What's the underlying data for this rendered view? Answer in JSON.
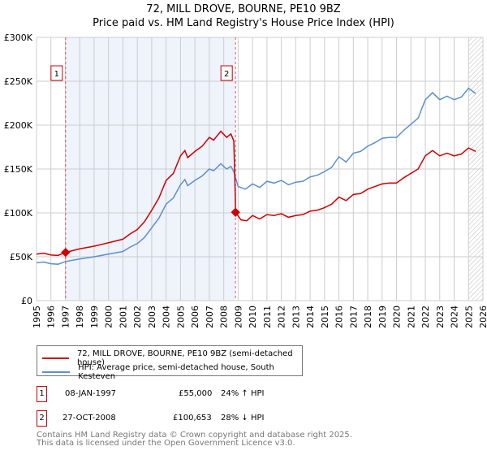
{
  "title": "72, MILL DROVE, BOURNE, PE10 9BZ",
  "subtitle": "Price paid vs. HM Land Registry's House Price Index (HPI)",
  "chart_data": {
    "type": "line",
    "xlim": [
      1995,
      2026
    ],
    "ylim": [
      0,
      300000
    ],
    "yticks": [
      0,
      50000,
      100000,
      150000,
      200000,
      250000,
      300000
    ],
    "ytick_labels": [
      "£0",
      "£50K",
      "£100K",
      "£150K",
      "£200K",
      "£250K",
      "£300K"
    ],
    "xticks": [
      1995,
      1996,
      1997,
      1998,
      1999,
      2000,
      2001,
      2002,
      2003,
      2004,
      2005,
      2006,
      2007,
      2008,
      2009,
      2010,
      2011,
      2012,
      2013,
      2014,
      2015,
      2016,
      2017,
      2018,
      2019,
      2020,
      2021,
      2022,
      2023,
      2024,
      2025,
      2026
    ],
    "series": [
      {
        "name": "72, MILL DROVE, BOURNE, PE10 9BZ (semi-detached house)",
        "color": "#cc0000",
        "points": [
          [
            1995,
            53000
          ],
          [
            1995.5,
            54000
          ],
          [
            1996,
            52000
          ],
          [
            1996.5,
            51500
          ],
          [
            1997.02,
            55000
          ],
          [
            1998,
            59000
          ],
          [
            1999,
            62000
          ],
          [
            2000,
            66000
          ],
          [
            2001,
            70000
          ],
          [
            2001.5,
            76000
          ],
          [
            2002,
            81000
          ],
          [
            2002.5,
            90000
          ],
          [
            2003,
            103000
          ],
          [
            2003.5,
            117000
          ],
          [
            2004,
            137000
          ],
          [
            2004.5,
            145000
          ],
          [
            2005,
            165000
          ],
          [
            2005.3,
            171000
          ],
          [
            2005.5,
            163000
          ],
          [
            2006,
            170000
          ],
          [
            2006.5,
            176000
          ],
          [
            2007,
            186000
          ],
          [
            2007.3,
            183000
          ],
          [
            2007.8,
            193000
          ],
          [
            2008.2,
            186000
          ],
          [
            2008.5,
            190000
          ],
          [
            2008.7,
            182000
          ],
          [
            2008.8,
            120000
          ],
          [
            2008.82,
            100653
          ],
          [
            2009.2,
            92000
          ],
          [
            2009.6,
            91000
          ],
          [
            2010,
            97000
          ],
          [
            2010.5,
            93000
          ],
          [
            2011,
            98000
          ],
          [
            2011.5,
            97000
          ],
          [
            2012,
            99000
          ],
          [
            2012.5,
            95000
          ],
          [
            2013,
            97000
          ],
          [
            2013.5,
            98000
          ],
          [
            2014,
            102000
          ],
          [
            2014.5,
            103000
          ],
          [
            2015,
            106000
          ],
          [
            2015.5,
            110000
          ],
          [
            2016,
            118000
          ],
          [
            2016.5,
            114000
          ],
          [
            2017,
            121000
          ],
          [
            2017.5,
            122000
          ],
          [
            2018,
            127000
          ],
          [
            2018.5,
            130000
          ],
          [
            2019,
            133000
          ],
          [
            2019.5,
            134000
          ],
          [
            2020,
            134000
          ],
          [
            2020.5,
            140000
          ],
          [
            2021,
            145000
          ],
          [
            2021.5,
            150000
          ],
          [
            2022,
            165000
          ],
          [
            2022.5,
            171000
          ],
          [
            2023,
            165000
          ],
          [
            2023.5,
            168000
          ],
          [
            2024,
            165000
          ],
          [
            2024.5,
            167000
          ],
          [
            2025,
            174000
          ],
          [
            2025.5,
            170000
          ]
        ]
      },
      {
        "name": "HPI: Average price, semi-detached house, South Kesteven",
        "color": "#5b8fd0",
        "points": [
          [
            1995,
            43000
          ],
          [
            1995.5,
            44000
          ],
          [
            1996,
            42000
          ],
          [
            1996.5,
            41500
          ],
          [
            1997,
            44500
          ],
          [
            1998,
            47500
          ],
          [
            1999,
            50000
          ],
          [
            2000,
            53000
          ],
          [
            2001,
            56000
          ],
          [
            2001.5,
            61000
          ],
          [
            2002,
            65000
          ],
          [
            2002.5,
            72000
          ],
          [
            2003,
            83000
          ],
          [
            2003.5,
            94000
          ],
          [
            2004,
            110000
          ],
          [
            2004.5,
            117000
          ],
          [
            2005,
            132000
          ],
          [
            2005.3,
            138000
          ],
          [
            2005.5,
            131000
          ],
          [
            2006,
            137000
          ],
          [
            2006.5,
            142000
          ],
          [
            2007,
            150000
          ],
          [
            2007.3,
            148000
          ],
          [
            2007.8,
            156000
          ],
          [
            2008.2,
            150000
          ],
          [
            2008.5,
            153000
          ],
          [
            2008.7,
            147000
          ],
          [
            2009,
            130000
          ],
          [
            2009.5,
            127000
          ],
          [
            2010,
            133000
          ],
          [
            2010.5,
            129000
          ],
          [
            2011,
            136000
          ],
          [
            2011.5,
            134000
          ],
          [
            2012,
            137000
          ],
          [
            2012.5,
            132000
          ],
          [
            2013,
            135000
          ],
          [
            2013.5,
            136000
          ],
          [
            2014,
            141000
          ],
          [
            2014.5,
            143000
          ],
          [
            2015,
            147000
          ],
          [
            2015.5,
            152000
          ],
          [
            2016,
            164000
          ],
          [
            2016.5,
            158000
          ],
          [
            2017,
            168000
          ],
          [
            2017.5,
            170000
          ],
          [
            2018,
            176000
          ],
          [
            2018.5,
            180000
          ],
          [
            2019,
            185000
          ],
          [
            2019.5,
            186000
          ],
          [
            2020,
            186000
          ],
          [
            2020.5,
            194000
          ],
          [
            2021,
            201000
          ],
          [
            2021.5,
            208000
          ],
          [
            2022,
            229000
          ],
          [
            2022.5,
            237000
          ],
          [
            2023,
            229000
          ],
          [
            2023.5,
            233000
          ],
          [
            2024,
            229000
          ],
          [
            2024.5,
            232000
          ],
          [
            2025,
            242000
          ],
          [
            2025.5,
            236000
          ]
        ]
      }
    ],
    "sales": [
      {
        "label": "1",
        "x": 1997.02,
        "value": 55000
      },
      {
        "label": "2",
        "x": 2008.82,
        "value": 100653
      }
    ]
  },
  "legend": {
    "items": [
      "72, MILL DROVE, BOURNE, PE10 9BZ (semi-detached house)",
      "HPI: Average price, semi-detached house, South Kesteven"
    ]
  },
  "transactions": [
    {
      "num": "1",
      "date": "08-JAN-1997",
      "price": "£55,000",
      "hpi": "24% ↑ HPI"
    },
    {
      "num": "2",
      "date": "27-OCT-2008",
      "price": "£100,653",
      "hpi": "28% ↓ HPI"
    }
  ],
  "footer": {
    "line1": "Contains HM Land Registry data © Crown copyright and database right 2025.",
    "line2": "This data is licensed under the Open Government Licence v3.0."
  }
}
